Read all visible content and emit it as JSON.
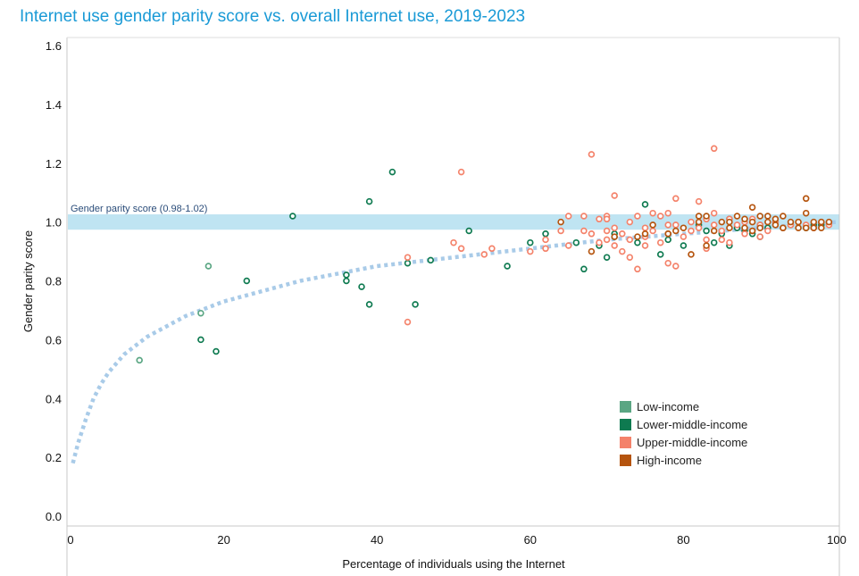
{
  "chart_data": {
    "type": "scatter",
    "title": "Internet use gender parity score vs. overall Internet use, 2019-2023",
    "xlabel": "Percentage of individuals using the Internet",
    "ylabel": "Gender parity score",
    "xlim": [
      0,
      100
    ],
    "ylim": [
      0,
      1.6
    ],
    "x_ticks": [
      "0",
      "20",
      "40",
      "60",
      "80",
      "100"
    ],
    "y_ticks": [
      "0.0",
      "0.2",
      "0.4",
      "0.6",
      "0.8",
      "1.0",
      "1.2",
      "1.4",
      "1.6"
    ],
    "parity_band": {
      "label": "Gender parity score (0.98-1.02)",
      "min": 0.98,
      "max": 1.02,
      "color": "#bfe4f2"
    },
    "trend": {
      "color": "#a9cbe8",
      "points": [
        [
          0.3,
          0.18
        ],
        [
          1,
          0.25
        ],
        [
          2,
          0.33
        ],
        [
          3,
          0.4
        ],
        [
          4,
          0.45
        ],
        [
          5,
          0.49
        ],
        [
          7,
          0.55
        ],
        [
          10,
          0.61
        ],
        [
          15,
          0.68
        ],
        [
          20,
          0.73
        ],
        [
          30,
          0.8
        ],
        [
          40,
          0.85
        ],
        [
          50,
          0.88
        ],
        [
          60,
          0.91
        ],
        [
          70,
          0.94
        ],
        [
          80,
          0.96
        ],
        [
          90,
          0.98
        ],
        [
          100,
          1.0
        ]
      ]
    },
    "legend_position": "bottom-right",
    "series": [
      {
        "name": "Low-income",
        "color": "#5aa683",
        "points": [
          [
            9,
            0.53
          ],
          [
            17,
            0.69
          ],
          [
            18,
            0.85
          ]
        ]
      },
      {
        "name": "Lower-middle-income",
        "color": "#0e7a50",
        "points": [
          [
            17,
            0.6
          ],
          [
            19,
            0.56
          ],
          [
            23,
            0.8
          ],
          [
            29,
            1.02
          ],
          [
            36,
            0.82
          ],
          [
            36,
            0.8
          ],
          [
            38,
            0.78
          ],
          [
            39,
            1.07
          ],
          [
            39,
            0.72
          ],
          [
            42,
            1.17
          ],
          [
            44,
            0.86
          ],
          [
            45,
            0.72
          ],
          [
            47,
            0.87
          ],
          [
            52,
            0.97
          ],
          [
            57,
            0.85
          ],
          [
            60,
            0.93
          ],
          [
            62,
            0.96
          ],
          [
            66,
            0.93
          ],
          [
            67,
            0.84
          ],
          [
            69,
            0.92
          ],
          [
            70,
            0.88
          ],
          [
            71,
            0.95
          ],
          [
            71,
            0.96
          ],
          [
            74,
            0.93
          ],
          [
            75,
            1.06
          ],
          [
            77,
            0.89
          ],
          [
            78,
            0.94
          ],
          [
            78,
            0.96
          ],
          [
            80,
            0.92
          ],
          [
            82,
            0.99
          ],
          [
            83,
            0.97
          ],
          [
            84,
            0.93
          ],
          [
            85,
            0.96
          ],
          [
            86,
            0.92
          ],
          [
            86,
            1.01
          ],
          [
            87,
            0.98
          ],
          [
            88,
            0.97
          ],
          [
            89,
            0.96
          ],
          [
            90,
            0.99
          ],
          [
            90,
            0.95
          ],
          [
            91,
            0.98
          ],
          [
            92,
            1.0
          ],
          [
            93,
            0.98
          ],
          [
            94,
            0.99
          ],
          [
            96,
            0.98
          ],
          [
            97,
            0.99
          ],
          [
            98,
            0.99
          ]
        ]
      },
      {
        "name": "Upper-middle-income",
        "color": "#f4826a",
        "points": [
          [
            44,
            0.88
          ],
          [
            44,
            0.66
          ],
          [
            50,
            0.93
          ],
          [
            51,
            1.17
          ],
          [
            51,
            0.91
          ],
          [
            54,
            0.89
          ],
          [
            55,
            0.91
          ],
          [
            60,
            0.9
          ],
          [
            62,
            0.94
          ],
          [
            62,
            0.91
          ],
          [
            64,
            0.97
          ],
          [
            65,
            1.02
          ],
          [
            65,
            0.92
          ],
          [
            67,
            1.02
          ],
          [
            67,
            0.97
          ],
          [
            68,
            1.23
          ],
          [
            68,
            0.96
          ],
          [
            69,
            1.01
          ],
          [
            69,
            0.93
          ],
          [
            70,
            1.02
          ],
          [
            70,
            1.01
          ],
          [
            70,
            0.97
          ],
          [
            70,
            0.94
          ],
          [
            71,
            1.09
          ],
          [
            71,
            0.98
          ],
          [
            71,
            0.92
          ],
          [
            72,
            0.96
          ],
          [
            72,
            0.9
          ],
          [
            73,
            1.0
          ],
          [
            73,
            0.94
          ],
          [
            73,
            0.88
          ],
          [
            74,
            1.02
          ],
          [
            74,
            0.84
          ],
          [
            75,
            0.98
          ],
          [
            75,
            0.95
          ],
          [
            75,
            0.92
          ],
          [
            76,
            1.03
          ],
          [
            76,
            0.97
          ],
          [
            77,
            1.02
          ],
          [
            77,
            0.93
          ],
          [
            78,
            1.03
          ],
          [
            78,
            0.99
          ],
          [
            78,
            0.96
          ],
          [
            78,
            0.86
          ],
          [
            79,
            1.08
          ],
          [
            79,
            0.99
          ],
          [
            79,
            0.85
          ],
          [
            80,
            0.95
          ],
          [
            81,
            1.0
          ],
          [
            81,
            0.97
          ],
          [
            82,
            1.07
          ],
          [
            82,
            0.98
          ],
          [
            83,
            1.01
          ],
          [
            83,
            0.94
          ],
          [
            83,
            0.91
          ],
          [
            84,
            1.25
          ],
          [
            84,
            1.03
          ],
          [
            84,
            0.99
          ],
          [
            85,
            0.97
          ],
          [
            85,
            0.94
          ],
          [
            86,
            1.01
          ],
          [
            86,
            0.93
          ],
          [
            87,
            0.99
          ],
          [
            88,
            1.0
          ],
          [
            88,
            0.96
          ],
          [
            89,
            1.01
          ],
          [
            89,
            0.97
          ],
          [
            90,
            0.99
          ],
          [
            90,
            0.95
          ],
          [
            91,
            0.97
          ],
          [
            92,
            1.0
          ],
          [
            93,
            0.98
          ],
          [
            94,
            0.99
          ],
          [
            95,
            1.0
          ],
          [
            96,
            0.99
          ],
          [
            97,
            0.98
          ],
          [
            98,
            1.0
          ],
          [
            99,
            0.99
          ]
        ]
      },
      {
        "name": "High-income",
        "color": "#b5540e",
        "points": [
          [
            64,
            1.0
          ],
          [
            68,
            0.9
          ],
          [
            71,
            0.95
          ],
          [
            74,
            0.95
          ],
          [
            75,
            0.96
          ],
          [
            76,
            0.99
          ],
          [
            78,
            0.96
          ],
          [
            79,
            0.97
          ],
          [
            80,
            0.98
          ],
          [
            81,
            0.89
          ],
          [
            82,
            1.0
          ],
          [
            82,
            1.02
          ],
          [
            83,
            0.92
          ],
          [
            83,
            1.02
          ],
          [
            84,
            0.97
          ],
          [
            85,
            1.0
          ],
          [
            86,
            1.0
          ],
          [
            86,
            0.98
          ],
          [
            87,
            1.02
          ],
          [
            88,
            0.98
          ],
          [
            88,
            1.01
          ],
          [
            89,
            1.0
          ],
          [
            89,
            1.05
          ],
          [
            89,
            0.97
          ],
          [
            90,
            1.02
          ],
          [
            90,
            0.98
          ],
          [
            91,
            1.0
          ],
          [
            91,
            1.02
          ],
          [
            92,
            0.99
          ],
          [
            92,
            1.01
          ],
          [
            93,
            1.02
          ],
          [
            93,
            0.98
          ],
          [
            94,
            1.0
          ],
          [
            95,
            1.0
          ],
          [
            95,
            0.98
          ],
          [
            96,
            1.08
          ],
          [
            96,
            1.03
          ],
          [
            96,
            0.98
          ],
          [
            97,
            1.0
          ],
          [
            97,
            0.98
          ],
          [
            98,
            1.0
          ],
          [
            98,
            0.98
          ],
          [
            99,
            1.0
          ]
        ]
      }
    ]
  }
}
